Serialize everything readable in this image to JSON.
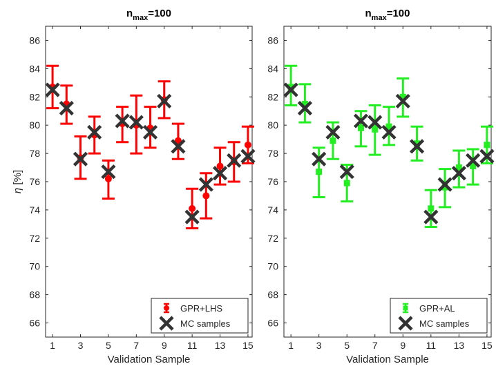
{
  "chart_data": [
    {
      "type": "scatter",
      "title_main": "n",
      "title_sub": "max",
      "title_rest": "=100",
      "xlabel": "Validation Sample",
      "ylabel_symbol": "η",
      "ylabel_unit": "[%]",
      "xlim": [
        0.5,
        15.3
      ],
      "ylim": [
        65,
        87
      ],
      "xticks": [
        1,
        3,
        5,
        7,
        9,
        11,
        13,
        15
      ],
      "yticks": [
        66,
        68,
        70,
        72,
        74,
        76,
        78,
        80,
        82,
        84,
        86
      ],
      "grid": false,
      "legend_position": "bottom-right",
      "series": [
        {
          "name": "GPR+LHS",
          "kind": "errorbar",
          "marker": "circle",
          "color": "#ff0000",
          "x": [
            1,
            2,
            3,
            4,
            5,
            6,
            7,
            8,
            9,
            10,
            11,
            12,
            13,
            14,
            15
          ],
          "y": [
            82.7,
            81.5,
            77.7,
            79.3,
            76.2,
            80.1,
            80.0,
            79.8,
            81.8,
            78.9,
            74.1,
            75.0,
            77.1,
            77.4,
            78.6
          ],
          "lower": [
            81.2,
            80.1,
            76.2,
            78.0,
            74.8,
            78.8,
            78.0,
            78.4,
            80.5,
            77.6,
            72.7,
            73.4,
            75.8,
            76.0,
            77.3
          ],
          "upper": [
            84.2,
            82.8,
            79.2,
            80.6,
            77.5,
            81.3,
            82.1,
            81.3,
            83.1,
            80.1,
            75.5,
            76.6,
            78.4,
            78.8,
            79.9
          ]
        },
        {
          "name": "MC samples",
          "kind": "marker",
          "marker": "x",
          "color": "#333333",
          "x": [
            1,
            2,
            3,
            4,
            5,
            6,
            7,
            8,
            9,
            10,
            11,
            12,
            13,
            14,
            15
          ],
          "y": [
            82.5,
            81.2,
            77.6,
            79.5,
            76.7,
            80.3,
            80.2,
            79.5,
            81.7,
            78.5,
            73.5,
            75.8,
            76.6,
            77.5,
            77.8
          ]
        }
      ]
    },
    {
      "type": "scatter",
      "title_main": "n",
      "title_sub": "max",
      "title_rest": "=100",
      "xlabel": "Validation Sample",
      "ylabel_symbol": "",
      "ylabel_unit": "",
      "xlim": [
        0.5,
        15.3
      ],
      "ylim": [
        65,
        87
      ],
      "xticks": [
        1,
        3,
        5,
        7,
        9,
        11,
        13,
        15
      ],
      "yticks": [
        66,
        68,
        70,
        72,
        74,
        76,
        78,
        80,
        82,
        84,
        86
      ],
      "grid": false,
      "legend_position": "bottom-right",
      "series": [
        {
          "name": "GPR+AL",
          "kind": "errorbar",
          "marker": "square",
          "color": "#22ee22",
          "x": [
            1,
            2,
            3,
            4,
            5,
            6,
            7,
            8,
            9,
            10,
            11,
            12,
            13,
            14,
            15
          ],
          "y": [
            82.7,
            81.5,
            76.7,
            78.9,
            75.9,
            79.8,
            79.7,
            79.9,
            82.0,
            78.7,
            74.1,
            75.6,
            77.0,
            77.1,
            78.6
          ],
          "lower": [
            81.4,
            80.2,
            74.9,
            77.6,
            74.6,
            78.5,
            77.9,
            78.6,
            80.6,
            77.5,
            72.8,
            74.2,
            75.6,
            75.8,
            77.3
          ],
          "upper": [
            84.2,
            82.9,
            78.4,
            80.2,
            77.2,
            81.0,
            81.4,
            81.3,
            83.3,
            79.9,
            75.4,
            76.9,
            78.2,
            78.3,
            79.9
          ]
        },
        {
          "name": "MC samples",
          "kind": "marker",
          "marker": "x",
          "color": "#333333",
          "x": [
            1,
            2,
            3,
            4,
            5,
            6,
            7,
            8,
            9,
            10,
            11,
            12,
            13,
            14,
            15
          ],
          "y": [
            82.5,
            81.2,
            77.6,
            79.5,
            76.7,
            80.3,
            80.2,
            79.5,
            81.7,
            78.5,
            73.5,
            75.8,
            76.6,
            77.5,
            77.8
          ]
        }
      ]
    }
  ]
}
